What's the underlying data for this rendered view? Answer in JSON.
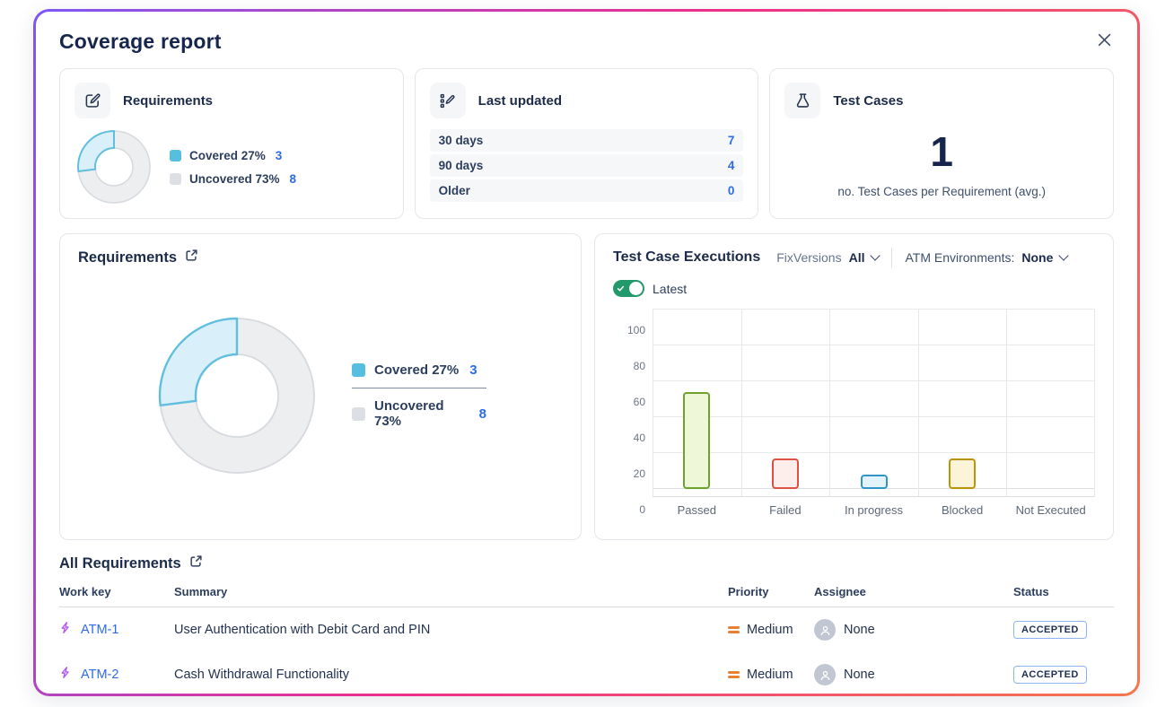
{
  "modal": {
    "title": "Coverage report"
  },
  "icons": {
    "close": "close-icon",
    "requirements_card": "edit-icon",
    "last_updated_card": "list-edit-icon",
    "test_cases_card": "flask-icon",
    "panel_links": "external-link-icon",
    "dropdowns": "chevron-down-icon",
    "work_items": "lightning-bolt-icon",
    "priority": "priority-medium-icon",
    "assignee": "person-avatar-icon"
  },
  "cards": {
    "requirements": {
      "title": "Requirements"
    },
    "last_updated": {
      "title": "Last updated",
      "rows": [
        {
          "label": "30 days",
          "value": "7"
        },
        {
          "label": "90 days",
          "value": "4"
        },
        {
          "label": "Older",
          "value": "0"
        }
      ]
    },
    "test_cases": {
      "title": "Test Cases",
      "value": "1",
      "caption": "no. Test Cases per Requirement (avg.)"
    }
  },
  "coverage": {
    "panel_title": "Requirements",
    "legend": [
      {
        "label": "Covered 27%",
        "count": "3"
      },
      {
        "label": "Uncovered 73%",
        "count": "8"
      }
    ]
  },
  "executions": {
    "title": "Test Case Executions",
    "fixversions_label": "FixVersions",
    "fixversions_value": "All",
    "environments_label": "ATM Environments:",
    "environments_value": "None",
    "toggle_label": "Latest",
    "toggle_on": true
  },
  "chart_data": [
    {
      "type": "pie",
      "title": "Requirements coverage",
      "labels": [
        "Covered",
        "Uncovered"
      ],
      "values_pct": [
        27,
        73
      ],
      "counts": [
        3,
        8
      ],
      "colors": {
        "covered_fill": "#d9f0fa",
        "covered_stroke": "#62bede",
        "uncovered_fill": "#eceef0",
        "uncovered_stroke": "#d6d9dd",
        "legend_covered": "#56bfe0",
        "legend_uncovered": "#dcdfe3"
      }
    },
    {
      "type": "bar",
      "title": "Test Case Executions",
      "categories": [
        "Passed",
        "Failed",
        "In progress",
        "Blocked",
        "Not Executed"
      ],
      "values": [
        54,
        17,
        8,
        17,
        0
      ],
      "ylim": [
        0,
        100
      ],
      "yticks": [
        0,
        20,
        40,
        60,
        80,
        100
      ],
      "grid": true,
      "legend_position": "none",
      "bar_styles": [
        {
          "fill": "#eef8d8",
          "stroke": "#6ba32c"
        },
        {
          "fill": "#fdeeec",
          "stroke": "#df5146"
        },
        {
          "fill": "#e2f3fb",
          "stroke": "#2f96c6"
        },
        {
          "fill": "#fcf4d8",
          "stroke": "#bd9306"
        },
        {
          "fill": "none",
          "stroke": "none"
        }
      ]
    }
  ],
  "table": {
    "title": "All Requirements",
    "columns": [
      "Work key",
      "Summary",
      "Priority",
      "Assignee",
      "Status"
    ],
    "rows": [
      {
        "key": "ATM-1",
        "summary": "User Authentication with Debit Card and PIN",
        "priority": "Medium",
        "assignee": "None",
        "status": "ACCEPTED"
      },
      {
        "key": "ATM-2",
        "summary": "Cash Withdrawal Functionality",
        "priority": "Medium",
        "assignee": "None",
        "status": "ACCEPTED"
      }
    ]
  },
  "colors": {
    "border_gradient": [
      "#7e57f2",
      "#ee2e8b",
      "#f5774e"
    ],
    "link_blue": "#2c6ce8",
    "toggle_green": "#21996a",
    "priority_orange": "#e97f33",
    "work_item_purple": "#b355f0",
    "status_badge_border": "#8fb2f2",
    "heading_navy": "#16254d"
  }
}
